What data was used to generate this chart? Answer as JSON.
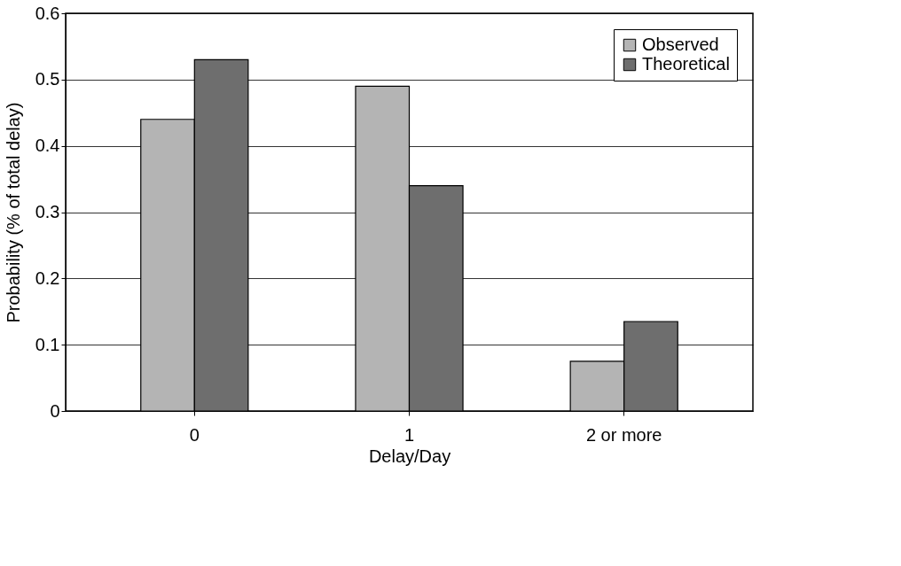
{
  "chart_data": {
    "type": "bar",
    "xlabel": "Delay/Day",
    "ylabel": "Probability (% of total delay)",
    "categories": [
      "0",
      "1",
      "2 or more"
    ],
    "series": [
      {
        "name": "Observed",
        "color": "#b4b4b4",
        "values": [
          0.44,
          0.49,
          0.075
        ]
      },
      {
        "name": "Theoretical",
        "color": "#6e6e6e",
        "values": [
          0.53,
          0.34,
          0.135
        ]
      }
    ],
    "ylim": [
      0,
      0.6
    ],
    "yticks": [
      {
        "value": 0,
        "label": "0"
      },
      0.1,
      0.2,
      0.3,
      0.4,
      0.5,
      0.6
    ],
    "grid": "y",
    "legend": "top right"
  }
}
